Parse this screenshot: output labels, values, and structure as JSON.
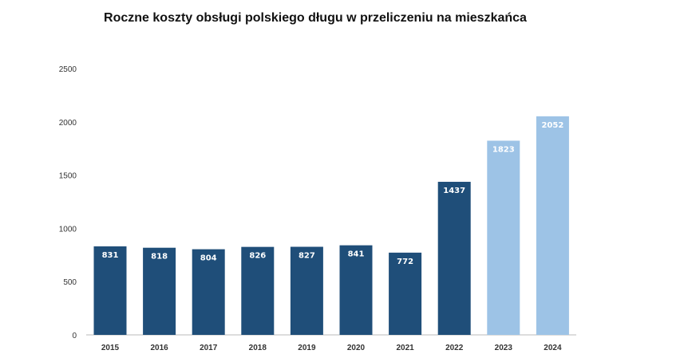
{
  "chart_data": {
    "type": "bar",
    "title": "Roczne koszty obsługi polskiego długu w przeliczeniu na mieszkańca",
    "xlabel": "",
    "ylabel": "",
    "ylim": [
      0,
      2500
    ],
    "yticks": [
      0,
      500,
      1000,
      1500,
      2000,
      2500
    ],
    "categories": [
      "2015",
      "2016",
      "2017",
      "2018",
      "2019",
      "2020",
      "2021",
      "2022",
      "2023",
      "2024"
    ],
    "values": [
      831,
      818,
      804,
      826,
      827,
      841,
      772,
      1437,
      1823,
      2052
    ],
    "forecast": [
      false,
      false,
      false,
      false,
      false,
      false,
      false,
      false,
      true,
      true
    ],
    "grid": false,
    "colors": {
      "actual": "#1f4e79",
      "forecast": "#9dc3e6"
    }
  }
}
